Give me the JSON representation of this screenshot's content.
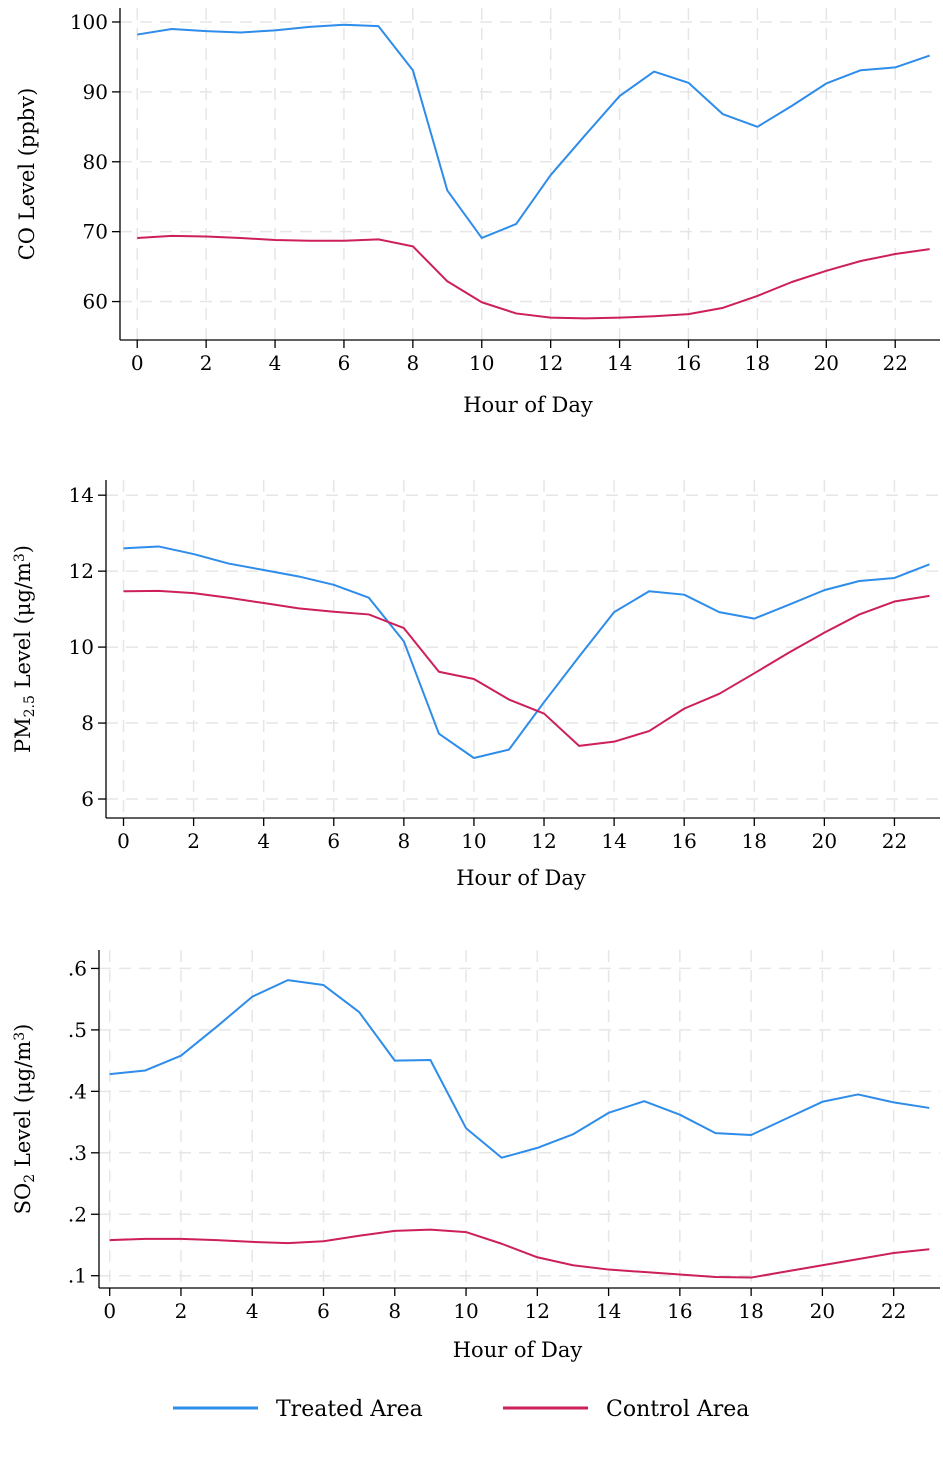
{
  "colors": {
    "treated": "#2e8cea",
    "control": "#cc1f5c"
  },
  "legend": {
    "treated_label": "Treated Area",
    "control_label": "Control Area"
  },
  "chart_data": [
    {
      "type": "line",
      "xlabel": "Hour of Day",
      "ylabel": "CO Level (ppbv)",
      "ylabel_parts": [
        "CO Level (ppbv)"
      ],
      "xlim": [
        -0.5,
        23.3
      ],
      "ylim": [
        54.5,
        102
      ],
      "xticks": [
        0,
        2,
        4,
        6,
        8,
        10,
        12,
        14,
        16,
        18,
        20,
        22
      ],
      "yticks": [
        60,
        70,
        80,
        90,
        100
      ],
      "ytick_labels": [
        "60",
        "70",
        "80",
        "90",
        "100"
      ],
      "x": [
        0,
        1,
        2,
        3,
        4,
        5,
        6,
        7,
        8,
        9,
        10,
        11,
        12,
        13,
        14,
        15,
        16,
        17,
        18,
        19,
        20,
        21,
        22,
        23
      ],
      "series": [
        {
          "name": "Treated Area",
          "values": [
            98.2,
            99.0,
            98.7,
            98.5,
            98.8,
            99.3,
            99.6,
            99.4,
            93.1,
            75.9,
            69.1,
            71.1,
            78.1,
            83.8,
            89.4,
            92.9,
            91.3,
            86.8,
            85.0,
            88.0,
            91.2,
            93.1,
            93.5,
            95.2
          ]
        },
        {
          "name": "Control Area",
          "values": [
            69.1,
            69.4,
            69.3,
            69.1,
            68.8,
            68.7,
            68.7,
            68.9,
            67.9,
            62.9,
            59.9,
            58.3,
            57.7,
            57.6,
            57.7,
            57.9,
            58.2,
            59.1,
            60.8,
            62.8,
            64.4,
            65.8,
            66.8,
            67.5
          ]
        }
      ]
    },
    {
      "type": "line",
      "xlabel": "Hour of Day",
      "ylabel": "PM2.5 Level (μg/m3)",
      "ylabel_parts": [
        "PM",
        "2.5",
        " Level (μg/m",
        "3",
        ")"
      ],
      "xlim": [
        -0.5,
        23.3
      ],
      "ylim": [
        5.5,
        14.4
      ],
      "xticks": [
        0,
        2,
        4,
        6,
        8,
        10,
        12,
        14,
        16,
        18,
        20,
        22
      ],
      "yticks": [
        6,
        8,
        10,
        12,
        14
      ],
      "ytick_labels": [
        "6",
        "8",
        "10",
        "12",
        "14"
      ],
      "x": [
        0,
        1,
        2,
        3,
        4,
        5,
        6,
        7,
        8,
        9,
        10,
        11,
        12,
        13,
        14,
        15,
        16,
        17,
        18,
        19,
        20,
        21,
        22,
        23
      ],
      "series": [
        {
          "name": "Treated Area",
          "values": [
            12.6,
            12.65,
            12.45,
            12.2,
            12.03,
            11.86,
            11.64,
            11.3,
            10.15,
            7.72,
            7.08,
            7.3,
            8.55,
            9.75,
            10.92,
            11.47,
            11.38,
            10.92,
            10.75,
            11.12,
            11.5,
            11.74,
            11.82,
            12.18
          ]
        },
        {
          "name": "Control Area",
          "values": [
            11.47,
            11.48,
            11.42,
            11.3,
            11.16,
            11.02,
            10.93,
            10.86,
            10.5,
            9.35,
            9.16,
            8.62,
            8.25,
            7.4,
            7.51,
            7.79,
            8.38,
            8.77,
            9.31,
            9.86,
            10.38,
            10.86,
            11.2,
            11.35
          ]
        }
      ]
    },
    {
      "type": "line",
      "xlabel": "Hour of Day",
      "ylabel": "SO2 Level (μg/m3)",
      "ylabel_parts": [
        "SO",
        "2",
        " Level (μg/m",
        "3",
        ")"
      ],
      "xlim": [
        -0.3,
        23.3
      ],
      "ylim": [
        0.08,
        0.63
      ],
      "xticks": [
        0,
        2,
        4,
        6,
        8,
        10,
        12,
        14,
        16,
        18,
        20,
        22
      ],
      "yticks": [
        0.1,
        0.2,
        0.3,
        0.4,
        0.5,
        0.6
      ],
      "ytick_labels": [
        ".1",
        ".2",
        ".3",
        ".4",
        ".5",
        ".6"
      ],
      "x": [
        0,
        1,
        2,
        3,
        4,
        5,
        6,
        7,
        8,
        9,
        10,
        11,
        12,
        13,
        14,
        15,
        16,
        17,
        18,
        19,
        20,
        21,
        22,
        23
      ],
      "series": [
        {
          "name": "Treated Area",
          "values": [
            0.428,
            0.434,
            0.458,
            0.505,
            0.554,
            0.581,
            0.573,
            0.529,
            0.45,
            0.451,
            0.34,
            0.292,
            0.308,
            0.33,
            0.365,
            0.384,
            0.362,
            0.332,
            0.329,
            0.356,
            0.383,
            0.395,
            0.382,
            0.373
          ]
        },
        {
          "name": "Control Area",
          "values": [
            0.158,
            0.16,
            0.16,
            0.158,
            0.155,
            0.153,
            0.156,
            0.165,
            0.173,
            0.175,
            0.171,
            0.152,
            0.13,
            0.117,
            0.11,
            0.106,
            0.102,
            0.098,
            0.097,
            0.107,
            0.117,
            0.127,
            0.137,
            0.143
          ]
        }
      ]
    }
  ]
}
